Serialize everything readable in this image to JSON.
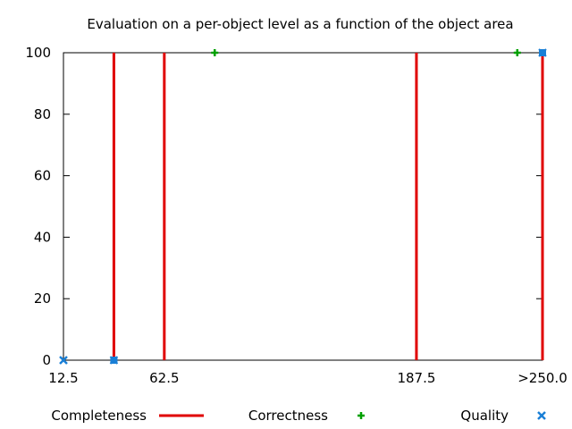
{
  "chart_data": {
    "type": "scatter",
    "title": "Evaluation on a per-object level as a function of the object area",
    "xlabel": "",
    "ylabel": "",
    "xlim": [
      12.5,
      250.0
    ],
    "ylim": [
      0,
      100
    ],
    "x_tick_labels": [
      {
        "value": 12.5,
        "label": "12.5"
      },
      {
        "value": 62.5,
        "label": "62.5"
      },
      {
        "value": 187.5,
        "label": "187.5"
      },
      {
        "value": 250.0,
        "label": ">250.0"
      }
    ],
    "y_tick_labels": [
      {
        "value": 0,
        "label": "0"
      },
      {
        "value": 20,
        "label": "20"
      },
      {
        "value": 40,
        "label": "40"
      },
      {
        "value": 60,
        "label": "60"
      },
      {
        "value": 80,
        "label": "80"
      },
      {
        "value": 100,
        "label": "100"
      }
    ],
    "grid": false,
    "legend_position": "bottom",
    "series": [
      {
        "name": "Completeness",
        "style": "impulses",
        "color": "#e00000",
        "points": [
          {
            "x": 37.5,
            "y": 100
          },
          {
            "x": 62.5,
            "y": 100
          },
          {
            "x": 187.5,
            "y": 100
          },
          {
            "x": 250.0,
            "y": 100
          }
        ]
      },
      {
        "name": "Correctness",
        "style": "plus",
        "color": "#00a000",
        "points": [
          {
            "x": 87.5,
            "y": 100
          },
          {
            "x": 237.5,
            "y": 100
          }
        ]
      },
      {
        "name": "Quality",
        "style": "cross-square",
        "color": "#1a7fd6",
        "points": [
          {
            "x": 12.5,
            "y": 0
          },
          {
            "x": 37.5,
            "y": 0
          },
          {
            "x": 250.0,
            "y": 100
          }
        ]
      }
    ]
  }
}
